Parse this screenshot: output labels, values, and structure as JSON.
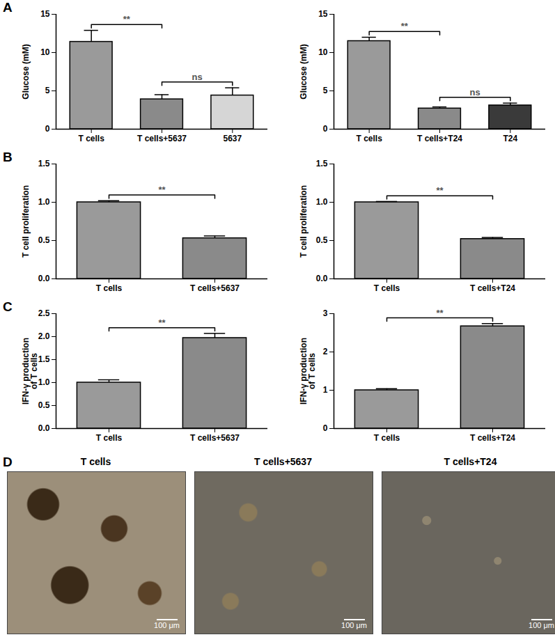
{
  "chart_data": [
    {
      "type": "bar",
      "panel": "A",
      "ylabel": "Glucose (mM)",
      "categories": [
        "T cells",
        "T cells+5637",
        "5637"
      ],
      "values": [
        11.4,
        3.9,
        4.4
      ],
      "errors": [
        1.5,
        0.6,
        1.0
      ],
      "colors": [
        "#9a9a9a",
        "#8a8a8a",
        "#d6d6d6"
      ],
      "ylim": [
        0,
        15
      ],
      "yticks": [
        0,
        5,
        10,
        15
      ],
      "comparisons": [
        {
          "between": [
            "T cells",
            "T cells+5637"
          ],
          "label": "**"
        },
        {
          "between": [
            "T cells+5637",
            "5637"
          ],
          "label": "ns"
        }
      ]
    },
    {
      "type": "bar",
      "ylabel": "Glucose (mM)",
      "categories": [
        "T cells",
        "T cells+T24",
        "T24"
      ],
      "values": [
        11.5,
        2.7,
        3.1
      ],
      "errors": [
        0.5,
        0.2,
        0.3
      ],
      "colors": [
        "#9a9a9a",
        "#8a8a8a",
        "#3a3a3a"
      ],
      "ylim": [
        0,
        15
      ],
      "yticks": [
        0,
        5,
        10,
        15
      ],
      "comparisons": [
        {
          "between": [
            "T cells",
            "T cells+T24"
          ],
          "label": "**"
        },
        {
          "between": [
            "T cells+T24",
            "T24"
          ],
          "label": "ns"
        }
      ]
    },
    {
      "type": "bar",
      "panel": "B",
      "ylabel": "T cell proliferation",
      "categories": [
        "T cells",
        "T cells+5637"
      ],
      "values": [
        1.0,
        0.53
      ],
      "errors": [
        0.02,
        0.03
      ],
      "colors": [
        "#9a9a9a",
        "#8a8a8a"
      ],
      "ylim": [
        0,
        1.5
      ],
      "yticks": [
        {
          "value": 0,
          "label": "0.0"
        },
        {
          "value": 0.5,
          "label": "0.5"
        },
        {
          "value": 1,
          "label": "1.0"
        },
        {
          "value": 1.5,
          "label": "1.5"
        }
      ],
      "comparisons": [
        {
          "between": [
            "T cells",
            "T cells+5637"
          ],
          "label": "**"
        }
      ]
    },
    {
      "type": "bar",
      "ylabel": "T cell proliferation",
      "categories": [
        "T cells",
        "T cells+T24"
      ],
      "values": [
        1.0,
        0.52
      ],
      "errors": [
        0.01,
        0.02
      ],
      "colors": [
        "#9a9a9a",
        "#8a8a8a"
      ],
      "ylim": [
        0,
        1.5
      ],
      "yticks": [
        {
          "value": 0,
          "label": "0.0"
        },
        {
          "value": 0.5,
          "label": "0.5"
        },
        {
          "value": 1,
          "label": "1.0"
        },
        {
          "value": 1.5,
          "label": "1.5"
        }
      ],
      "comparisons": [
        {
          "between": [
            "T cells",
            "T cells+T24"
          ],
          "label": "**"
        }
      ]
    },
    {
      "type": "bar",
      "panel": "C",
      "ylabel": "IFN-γ production\nof T cells",
      "categories": [
        "T cells",
        "T cells+5637"
      ],
      "values": [
        1.0,
        1.97
      ],
      "errors": [
        0.06,
        0.1
      ],
      "colors": [
        "#9a9a9a",
        "#8a8a8a"
      ],
      "ylim": [
        0,
        2.5
      ],
      "yticks": [
        {
          "value": 0,
          "label": "0.0"
        },
        {
          "value": 0.5,
          "label": "0.5"
        },
        {
          "value": 1,
          "label": "1.0"
        },
        {
          "value": 1.5,
          "label": "1.5"
        },
        {
          "value": 2,
          "label": "2.0"
        },
        {
          "value": 2.5,
          "label": "2.5"
        }
      ],
      "comparisons": [
        {
          "between": [
            "T cells",
            "T cells+5637"
          ],
          "label": "**"
        }
      ]
    },
    {
      "type": "bar",
      "ylabel": "IFN-γ production\nof T cells",
      "categories": [
        "T cells",
        "T cells+T24"
      ],
      "values": [
        1.0,
        2.67
      ],
      "errors": [
        0.04,
        0.07
      ],
      "colors": [
        "#9a9a9a",
        "#8a8a8a"
      ],
      "ylim": [
        0,
        3
      ],
      "yticks": [
        0,
        1,
        2,
        3
      ],
      "comparisons": [
        {
          "between": [
            "T cells",
            "T cells+T24"
          ],
          "label": "**"
        }
      ]
    }
  ],
  "panel_d": {
    "panel": "D",
    "images": [
      {
        "title": "T cells",
        "scale_bar": "100 μm"
      },
      {
        "title": "T cells+5637",
        "scale_bar": "100 μm"
      },
      {
        "title": "T cells+T24",
        "scale_bar": "100 μm"
      }
    ]
  }
}
